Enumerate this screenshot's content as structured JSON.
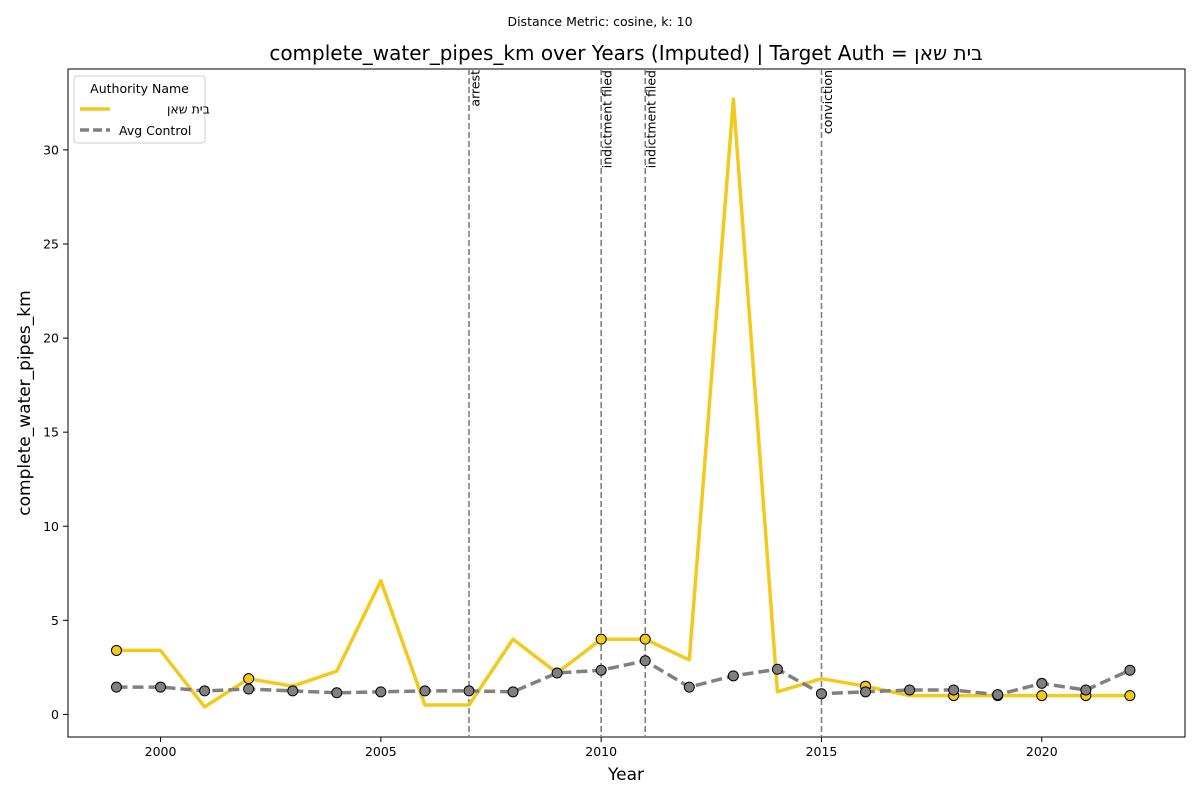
{
  "chart_data": {
    "type": "line",
    "subtitle": "Distance Metric: cosine, k: 10",
    "title": "complete_water_pipes_km over Years (Imputed) | Target Auth = בית שאן",
    "xlabel": "Year",
    "ylabel": "complete_water_pipes_km",
    "xlim": [
      1997.9,
      2023.25
    ],
    "ylim": [
      -1.2,
      34.3
    ],
    "xticks": [
      2000,
      2005,
      2010,
      2015,
      2020
    ],
    "yticks": [
      0,
      5,
      10,
      15,
      20,
      25,
      30
    ],
    "grid": false,
    "legend": {
      "title": "Authority Name",
      "placement": "top-left"
    },
    "events": [
      {
        "year": 2007,
        "label": "arrest"
      },
      {
        "year": 2010,
        "label": "indictment filed"
      },
      {
        "year": 2011,
        "label": "indictment filed"
      },
      {
        "year": 2015,
        "label": "conviction"
      }
    ],
    "x": [
      1999,
      2000,
      2001,
      2002,
      2003,
      2004,
      2005,
      2006,
      2007,
      2008,
      2009,
      2010,
      2011,
      2012,
      2013,
      2014,
      2015,
      2016,
      2017,
      2018,
      2019,
      2020,
      2021,
      2022
    ],
    "series": [
      {
        "name": "בית שאן",
        "color": "#f2ca1b",
        "style": "solid",
        "values": [
          3.4,
          3.4,
          0.4,
          1.9,
          1.5,
          2.3,
          7.1,
          0.5,
          0.5,
          4.0,
          2.2,
          4.0,
          4.0,
          2.9,
          32.7,
          1.2,
          1.9,
          1.5,
          1.0,
          1.0,
          1.0,
          1.0,
          1.0,
          1.0
        ],
        "markers": [
          1999,
          2002,
          2010,
          2011,
          2016,
          2018,
          2019,
          2020,
          2021,
          2022
        ]
      },
      {
        "name": "Avg Control",
        "color": "#808080",
        "style": "dashed",
        "values": [
          1.45,
          1.45,
          1.25,
          1.35,
          1.25,
          1.15,
          1.2,
          1.25,
          1.25,
          1.2,
          2.2,
          2.35,
          2.85,
          1.45,
          2.05,
          2.4,
          1.1,
          1.2,
          1.3,
          1.3,
          1.05,
          1.65,
          1.3,
          2.35
        ],
        "markers": [
          1999,
          2000,
          2001,
          2002,
          2003,
          2004,
          2005,
          2006,
          2007,
          2008,
          2009,
          2010,
          2011,
          2012,
          2013,
          2014,
          2015,
          2016,
          2017,
          2018,
          2019,
          2020,
          2021,
          2022
        ]
      }
    ]
  }
}
